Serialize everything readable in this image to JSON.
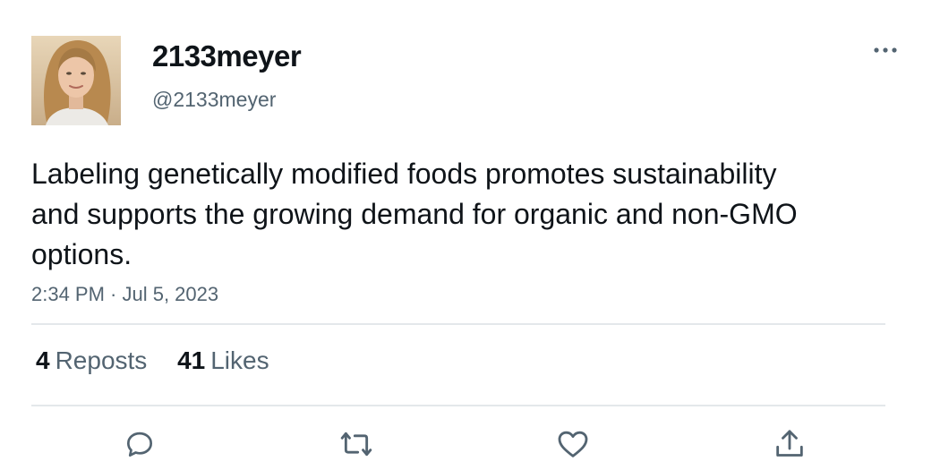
{
  "user": {
    "display_name": "2133meyer",
    "handle": "@2133meyer",
    "avatar": "profile-photo"
  },
  "tweet": {
    "text": "Labeling genetically modified foods promotes sustainability and supports the growing demand for organic and non-GMO options.",
    "timestamp": "2:34 PM · Jul 5, 2023"
  },
  "stats": {
    "reposts_count": "4",
    "reposts_label": "Reposts",
    "likes_count": "41",
    "likes_label": "Likes"
  },
  "icons": {
    "more": "more-horizontal-icon",
    "reply": "reply-icon",
    "repost": "repost-icon",
    "like": "heart-icon",
    "share": "share-icon"
  },
  "colors": {
    "text_primary": "#0f1419",
    "text_secondary": "#536471",
    "divider": "#e4e8eb"
  }
}
